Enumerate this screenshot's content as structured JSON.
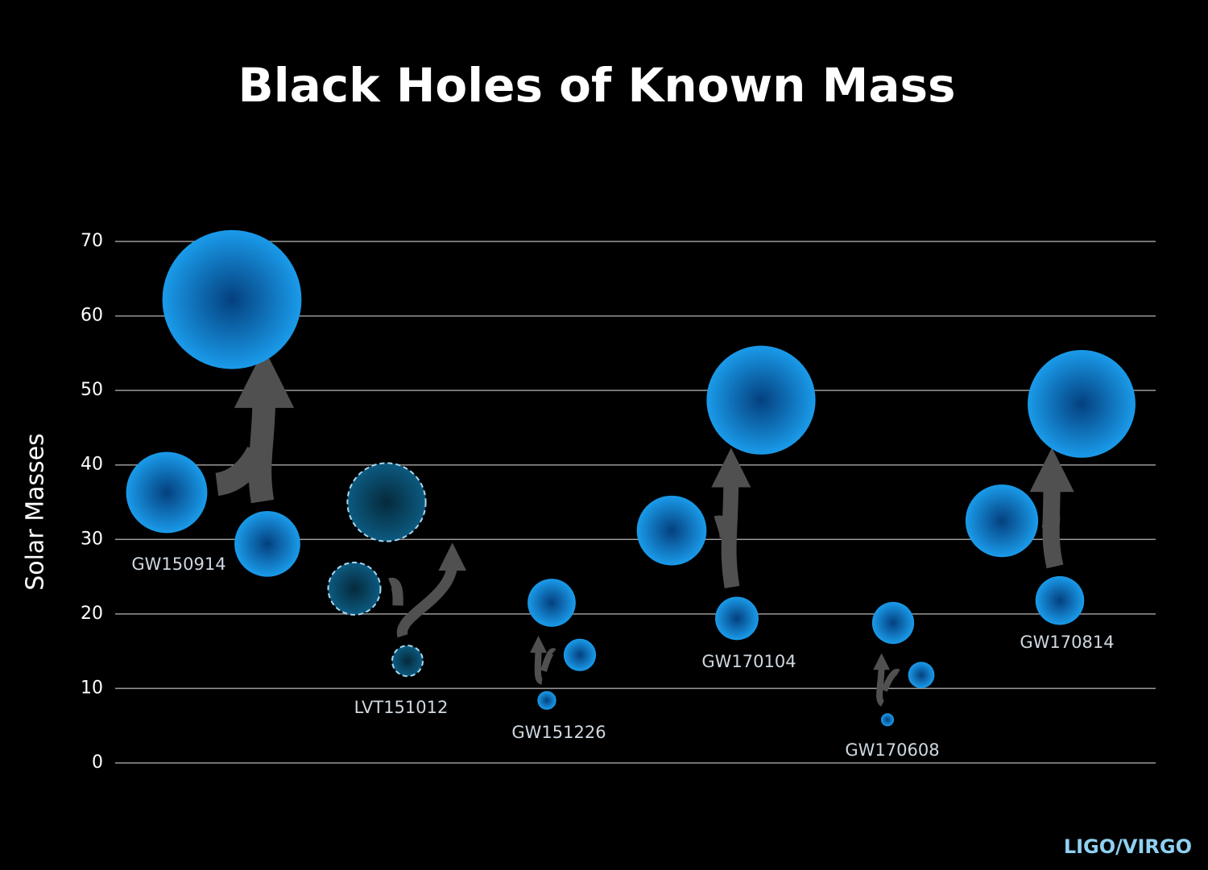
{
  "chart_data": {
    "type": "bubble",
    "title": "Black Holes of Known Mass",
    "y_label": "Solar Masses",
    "source": "LIGO/VIRGO",
    "ylim": [
      0,
      70
    ],
    "yticks": [
      0,
      10,
      20,
      30,
      40,
      50,
      60,
      70
    ],
    "grid": true,
    "color": "#1a9bea",
    "events": [
      {
        "name": "GW150914",
        "primary": 36.3,
        "secondary": 29.4,
        "final": 62.2,
        "dashed": false
      },
      {
        "name": "LVT151012",
        "primary": 23.4,
        "secondary": 13.7,
        "final": 35.0,
        "dashed": true
      },
      {
        "name": "GW151226",
        "primary": 14.5,
        "secondary": 8.4,
        "final": 21.5,
        "dashed": false
      },
      {
        "name": "GW170104",
        "primary": 31.2,
        "secondary": 19.4,
        "final": 48.7,
        "dashed": false
      },
      {
        "name": "GW170608",
        "primary": 11.8,
        "secondary": 5.8,
        "final": 18.8,
        "dashed": false
      },
      {
        "name": "GW170814",
        "primary": 32.5,
        "secondary": 21.8,
        "final": 48.2,
        "dashed": false
      }
    ]
  }
}
